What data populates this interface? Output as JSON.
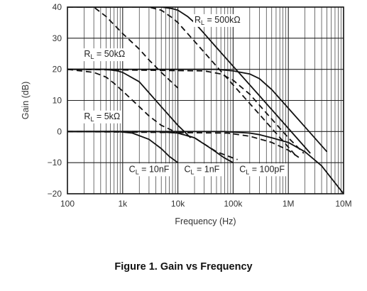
{
  "figure": {
    "caption": "Figure 1. Gain vs Frequency"
  },
  "chart_data": {
    "type": "line",
    "xlabel": "Frequency (Hz)",
    "ylabel": "Gain (dB)",
    "xscale": "log",
    "xlim": [
      100,
      10000000
    ],
    "ylim": [
      -20,
      40
    ],
    "grid": true,
    "x_ticks": [
      {
        "value": 100,
        "label": "100"
      },
      {
        "value": 1000,
        "label": "1k"
      },
      {
        "value": 10000,
        "label": "10k"
      },
      {
        "value": 100000,
        "label": "100k"
      },
      {
        "value": 1000000,
        "label": "1M"
      },
      {
        "value": 10000000,
        "label": "10M"
      }
    ],
    "y_ticks": [
      {
        "value": 40,
        "label": "40"
      },
      {
        "value": 30,
        "label": "30"
      },
      {
        "value": 20,
        "label": "20"
      },
      {
        "value": 10,
        "label": "10"
      },
      {
        "value": 0,
        "label": "0"
      },
      {
        "value": -10,
        "label": "−10"
      },
      {
        "value": -20,
        "label": "−20"
      }
    ],
    "series": [
      {
        "group": "R_L = 500kΩ",
        "style": "solid",
        "x": [
          100,
          5000,
          8000,
          10000,
          15000,
          20000,
          30000,
          50000,
          100000,
          300000,
          1000000,
          2500000
        ],
        "y": [
          40,
          40,
          39.5,
          39,
          37,
          35,
          31.5,
          27,
          21,
          11.5,
          1,
          -7
        ]
      },
      {
        "group": "R_L = 500kΩ",
        "style": "dashed",
        "x": [
          100,
          3000,
          5000,
          8000,
          10000,
          20000,
          50000,
          100000,
          300000,
          1000000,
          1400000
        ],
        "y": [
          40,
          40,
          39,
          36.5,
          35,
          29,
          21,
          15,
          5.5,
          -5,
          -8
        ]
      },
      {
        "group": "R_L = 50kΩ",
        "style": "solid",
        "x": [
          100,
          50000,
          100000,
          200000,
          300000,
          500000,
          1000000,
          2000000,
          5000000
        ],
        "y": [
          20,
          20,
          19.5,
          18.5,
          17,
          13.5,
          7.5,
          1.5,
          -6.5
        ]
      },
      {
        "group": "R_L = 50kΩ",
        "style": "solid",
        "x": [
          100,
          500,
          800,
          1000,
          2000,
          5000,
          10000,
          17000
        ],
        "y": [
          20,
          20,
          19.5,
          19,
          16,
          8,
          2,
          -2
        ]
      },
      {
        "group": "R_L = 50kΩ",
        "style": "dashed",
        "x": [
          100,
          30000,
          60000,
          100000,
          200000,
          500000,
          1000000,
          1900000
        ],
        "y": [
          20,
          19.5,
          18.5,
          16.5,
          12,
          4,
          -2,
          -7
        ]
      },
      {
        "group": "R_L = 50kΩ",
        "style": "dashed",
        "x": [
          100,
          300,
          500,
          1000,
          2000,
          3000,
          5000,
          10000
        ],
        "y": [
          40,
          40,
          37,
          31.5,
          26.5,
          23,
          19,
          14
        ]
      },
      {
        "group": "R_L = 5kΩ",
        "style": "solid",
        "x": [
          100,
          70000,
          200000,
          300000,
          500000,
          1000000,
          2000000,
          4000000,
          10000000
        ],
        "y": [
          0,
          0,
          -0.5,
          -1,
          -2,
          -3.5,
          -6.5,
          -11,
          -20
        ]
      },
      {
        "group": "R_L = 5kΩ",
        "style": "dashed",
        "x": [
          100,
          80000,
          200000,
          500000,
          1000000,
          1600000
        ],
        "y": [
          0,
          -0.5,
          -1.5,
          -3.5,
          -6,
          -8.5
        ]
      },
      {
        "group": "R_L = 5kΩ",
        "style": "solid",
        "x": [
          100,
          800,
          1500,
          3000,
          5000,
          7000,
          10000
        ],
        "y": [
          0,
          0,
          -0.5,
          -2.5,
          -5.5,
          -8,
          -10
        ]
      },
      {
        "group": "R_L = 5kΩ",
        "style": "dashed",
        "x": [
          100,
          300,
          500,
          700,
          1000,
          2000,
          3000,
          5000,
          10000
        ],
        "y": [
          20,
          19,
          17.5,
          15.5,
          13,
          8,
          5,
          2,
          -0.5
        ]
      },
      {
        "group": "R_L = 5kΩ",
        "style": "solid",
        "x": [
          100,
          4000,
          10000,
          20000,
          40000,
          70000,
          100000
        ],
        "y": [
          0,
          0,
          -0.5,
          -2,
          -5.5,
          -8.5,
          -10
        ]
      },
      {
        "group": "R_L = 5kΩ",
        "style": "dashed",
        "x": [
          100,
          5000,
          10000,
          20000,
          30000,
          50000,
          100000,
          120000
        ],
        "y": [
          0,
          0,
          -0.5,
          -2,
          -4,
          -6.5,
          -8.5,
          -9
        ]
      }
    ],
    "annotations": [
      {
        "text": "R",
        "sub": "L",
        "rest": " = 500kΩ",
        "x": 20000,
        "y": 35
      },
      {
        "text": "R",
        "sub": "L",
        "rest": " = 50kΩ",
        "x": 200,
        "y": 24
      },
      {
        "text": "R",
        "sub": "L",
        "rest": " = 5kΩ",
        "x": 200,
        "y": 4
      },
      {
        "text": "C",
        "sub": "L",
        "rest": " = 10nF",
        "x": 1300,
        "y": -13
      },
      {
        "text": "C",
        "sub": "L",
        "rest": " = 1nF",
        "x": 13000,
        "y": -13
      },
      {
        "text": "C",
        "sub": "L",
        "rest": " = 100pF",
        "x": 130000,
        "y": -13
      }
    ]
  }
}
